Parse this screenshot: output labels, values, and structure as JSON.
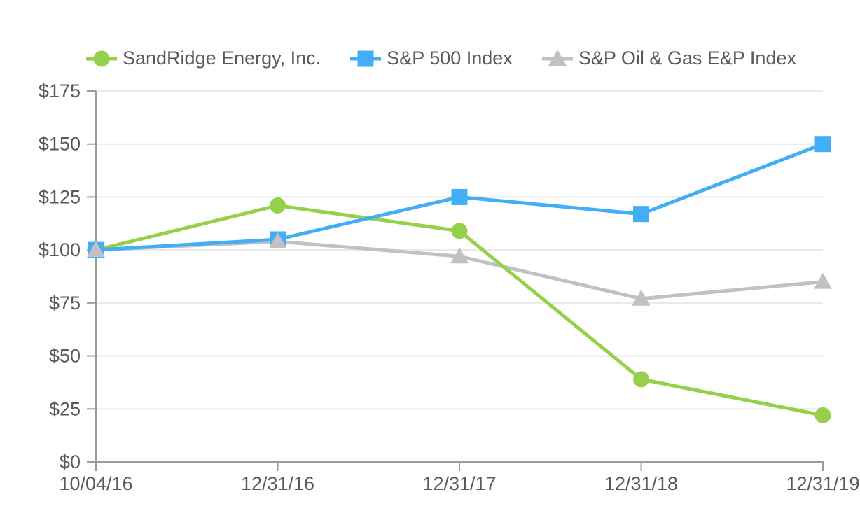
{
  "theme": {
    "background": "#FFFFFF",
    "axis_color": "#9B9B9B",
    "grid_color": "#E8E8E8",
    "label_color": "#595959"
  },
  "chart_data": {
    "type": "line",
    "x": [
      "10/04/16",
      "12/31/16",
      "12/31/17",
      "12/31/18",
      "12/31/19"
    ],
    "series": [
      {
        "name": "SandRidge Energy, Inc.",
        "marker": "circle",
        "color": "#96D04B",
        "values": [
          100,
          121,
          109,
          39,
          22
        ]
      },
      {
        "name": "S&P 500 Index",
        "marker": "square",
        "color": "#42AFF5",
        "values": [
          100,
          105,
          125,
          117,
          150
        ]
      },
      {
        "name": "S&P Oil & Gas E&P Index",
        "marker": "triangle",
        "color": "#C1C1C5",
        "values": [
          100,
          104,
          97,
          77,
          85
        ]
      }
    ],
    "ylim": [
      0,
      175
    ],
    "ytick_step": 25,
    "ytick_labels": [
      "$0",
      "$25",
      "$50",
      "$75",
      "$100",
      "$125",
      "$150",
      "$175"
    ],
    "value_prefix": "$",
    "grid": true,
    "legend_position": "top"
  }
}
